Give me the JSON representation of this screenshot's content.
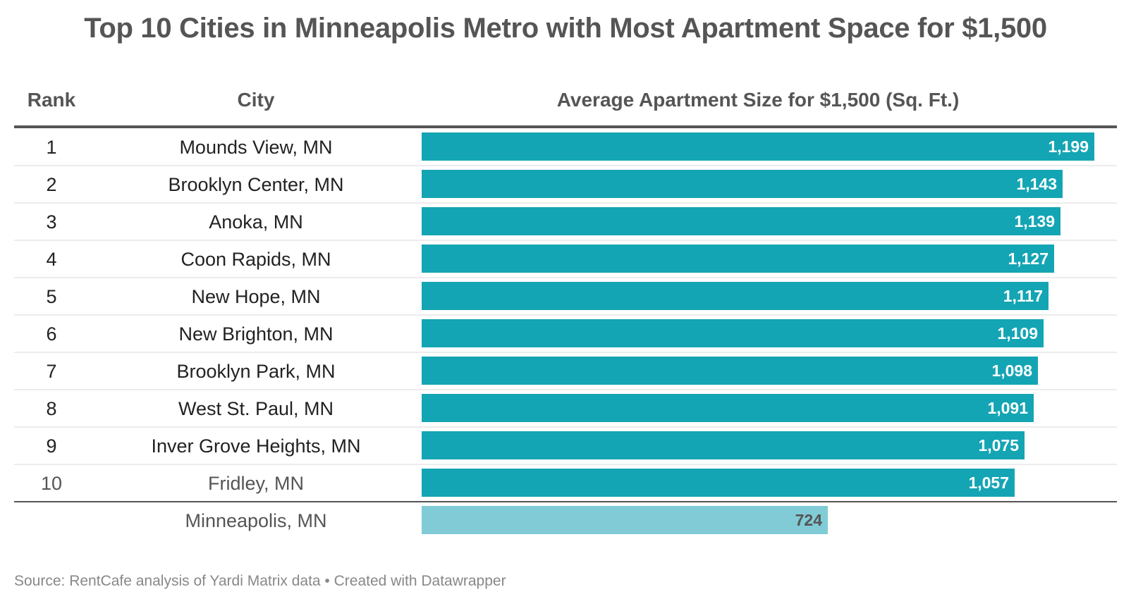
{
  "title": "Top 10 Cities in Minneapolis Metro with Most Apartment Space for $1,500",
  "headers": {
    "rank": "Rank",
    "city": "City",
    "value": "Average Apartment Size for $1,500 (Sq. Ft.)"
  },
  "colors": {
    "bar": "#14a5b4",
    "reference_bar": "#80cbd5",
    "text": "#555555"
  },
  "chart_data": {
    "type": "bar",
    "orientation": "horizontal",
    "title": "Top 10 Cities in Minneapolis Metro with Most Apartment Space for $1,500",
    "value_label": "Average Apartment Size for $1,500 (Sq. Ft.)",
    "rows": [
      {
        "rank": "1",
        "city": "Mounds View, MN",
        "value": 1199,
        "label": "1,199"
      },
      {
        "rank": "2",
        "city": "Brooklyn Center, MN",
        "value": 1143,
        "label": "1,143"
      },
      {
        "rank": "3",
        "city": "Anoka, MN",
        "value": 1139,
        "label": "1,139"
      },
      {
        "rank": "4",
        "city": "Coon Rapids, MN",
        "value": 1127,
        "label": "1,127"
      },
      {
        "rank": "5",
        "city": "New Hope, MN",
        "value": 1117,
        "label": "1,117"
      },
      {
        "rank": "6",
        "city": "New Brighton, MN",
        "value": 1109,
        "label": "1,109"
      },
      {
        "rank": "7",
        "city": "Brooklyn Park, MN",
        "value": 1098,
        "label": "1,098"
      },
      {
        "rank": "8",
        "city": "West St. Paul, MN",
        "value": 1091,
        "label": "1,091"
      },
      {
        "rank": "9",
        "city": "Inver Grove Heights, MN",
        "value": 1075,
        "label": "1,075"
      },
      {
        "rank": "10",
        "city": "Fridley, MN",
        "value": 1057,
        "label": "1,057"
      }
    ],
    "reference": {
      "rank": "",
      "city": "Minneapolis, MN",
      "value": 724,
      "label": "724"
    },
    "xlim": [
      0,
      1199
    ]
  },
  "footer": "Source: RentCafe analysis of Yardi Matrix data • Created with Datawrapper"
}
